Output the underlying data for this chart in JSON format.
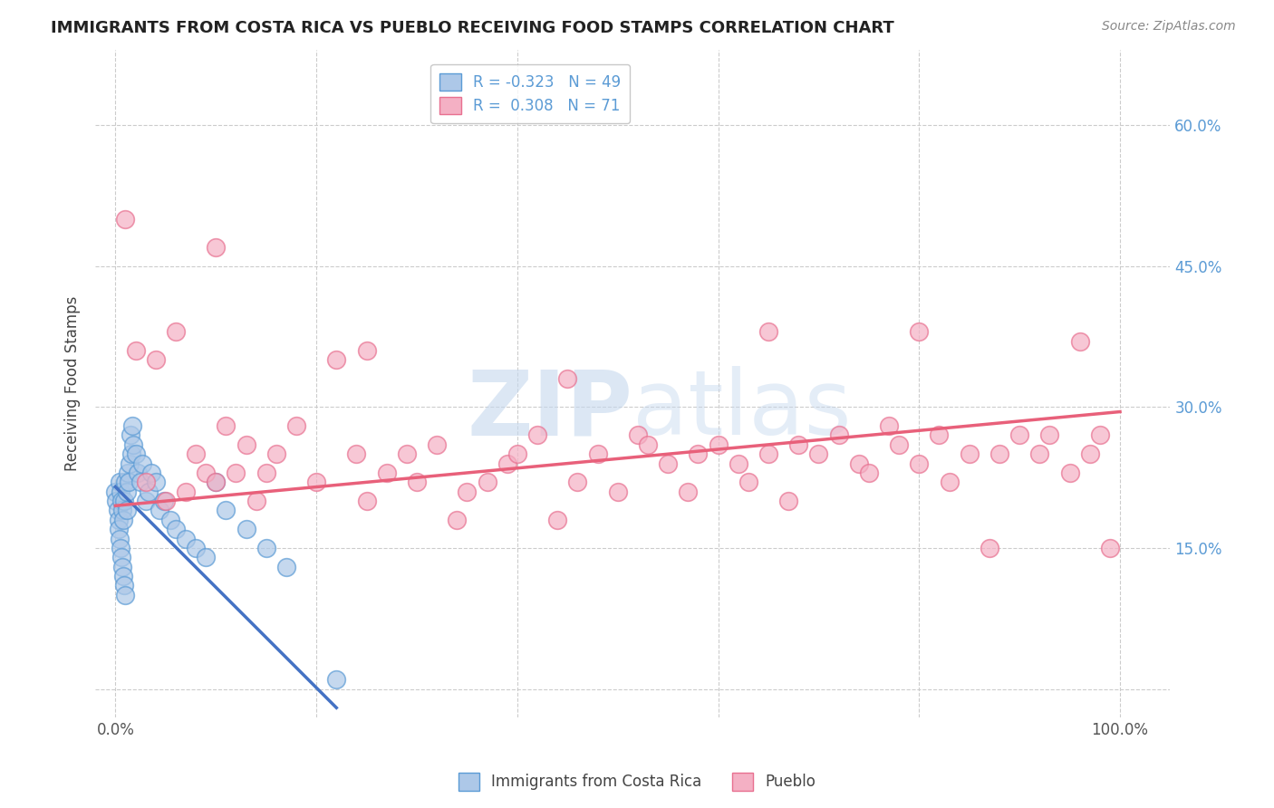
{
  "title": "IMMIGRANTS FROM COSTA RICA VS PUEBLO RECEIVING FOOD STAMPS CORRELATION CHART",
  "source": "Source: ZipAtlas.com",
  "ylabel": "Receiving Food Stamps",
  "legend_labels": [
    "Immigrants from Costa Rica",
    "Pueblo"
  ],
  "r_blue": -0.323,
  "n_blue": 49,
  "r_pink": 0.308,
  "n_pink": 71,
  "x_ticks": [
    0.0,
    0.2,
    0.4,
    0.6,
    0.8,
    1.0
  ],
  "y_ticks": [
    0.0,
    0.15,
    0.3,
    0.45,
    0.6
  ],
  "xlim": [
    -0.02,
    1.05
  ],
  "ylim": [
    -0.03,
    0.68
  ],
  "background_color": "#ffffff",
  "grid_color": "#cccccc",
  "blue_fill": "#adc8e8",
  "pink_fill": "#f4b0c4",
  "blue_edge": "#5b9bd5",
  "pink_edge": "#e87090",
  "blue_line": "#4472c4",
  "pink_line": "#e8607a",
  "watermark_color": "#c5d8ee",
  "blue_scatter_x": [
    0.0,
    0.001,
    0.002,
    0.003,
    0.003,
    0.004,
    0.004,
    0.005,
    0.005,
    0.006,
    0.006,
    0.007,
    0.007,
    0.008,
    0.008,
    0.009,
    0.009,
    0.01,
    0.01,
    0.011,
    0.011,
    0.012,
    0.013,
    0.014,
    0.015,
    0.016,
    0.017,
    0.018,
    0.02,
    0.022,
    0.025,
    0.027,
    0.03,
    0.033,
    0.036,
    0.04,
    0.044,
    0.048,
    0.055,
    0.06,
    0.07,
    0.08,
    0.09,
    0.1,
    0.11,
    0.13,
    0.15,
    0.17,
    0.22
  ],
  "blue_scatter_y": [
    0.21,
    0.2,
    0.19,
    0.18,
    0.17,
    0.22,
    0.16,
    0.15,
    0.21,
    0.14,
    0.2,
    0.13,
    0.19,
    0.12,
    0.18,
    0.11,
    0.2,
    0.1,
    0.22,
    0.21,
    0.19,
    0.23,
    0.22,
    0.24,
    0.27,
    0.25,
    0.28,
    0.26,
    0.25,
    0.23,
    0.22,
    0.24,
    0.2,
    0.21,
    0.23,
    0.22,
    0.19,
    0.2,
    0.18,
    0.17,
    0.16,
    0.15,
    0.14,
    0.22,
    0.19,
    0.17,
    0.15,
    0.13,
    0.01
  ],
  "pink_scatter_x": [
    0.01,
    0.02,
    0.03,
    0.04,
    0.05,
    0.06,
    0.07,
    0.08,
    0.09,
    0.1,
    0.11,
    0.12,
    0.13,
    0.14,
    0.15,
    0.16,
    0.18,
    0.2,
    0.22,
    0.24,
    0.25,
    0.27,
    0.29,
    0.3,
    0.32,
    0.34,
    0.35,
    0.37,
    0.39,
    0.4,
    0.42,
    0.44,
    0.46,
    0.48,
    0.5,
    0.52,
    0.53,
    0.55,
    0.57,
    0.58,
    0.6,
    0.62,
    0.63,
    0.65,
    0.67,
    0.68,
    0.7,
    0.72,
    0.74,
    0.75,
    0.77,
    0.78,
    0.8,
    0.82,
    0.83,
    0.85,
    0.87,
    0.88,
    0.9,
    0.92,
    0.93,
    0.95,
    0.96,
    0.97,
    0.98,
    0.99,
    0.1,
    0.25,
    0.45,
    0.65,
    0.8
  ],
  "pink_scatter_y": [
    0.5,
    0.36,
    0.22,
    0.35,
    0.2,
    0.38,
    0.21,
    0.25,
    0.23,
    0.22,
    0.28,
    0.23,
    0.26,
    0.2,
    0.23,
    0.25,
    0.28,
    0.22,
    0.35,
    0.25,
    0.2,
    0.23,
    0.25,
    0.22,
    0.26,
    0.18,
    0.21,
    0.22,
    0.24,
    0.25,
    0.27,
    0.18,
    0.22,
    0.25,
    0.21,
    0.27,
    0.26,
    0.24,
    0.21,
    0.25,
    0.26,
    0.24,
    0.22,
    0.25,
    0.2,
    0.26,
    0.25,
    0.27,
    0.24,
    0.23,
    0.28,
    0.26,
    0.24,
    0.27,
    0.22,
    0.25,
    0.15,
    0.25,
    0.27,
    0.25,
    0.27,
    0.23,
    0.37,
    0.25,
    0.27,
    0.15,
    0.47,
    0.36,
    0.33,
    0.38,
    0.38
  ],
  "blue_line_x": [
    0.0,
    0.22
  ],
  "blue_line_y": [
    0.215,
    -0.02
  ],
  "pink_line_x": [
    0.0,
    1.0
  ],
  "pink_line_y": [
    0.195,
    0.295
  ]
}
